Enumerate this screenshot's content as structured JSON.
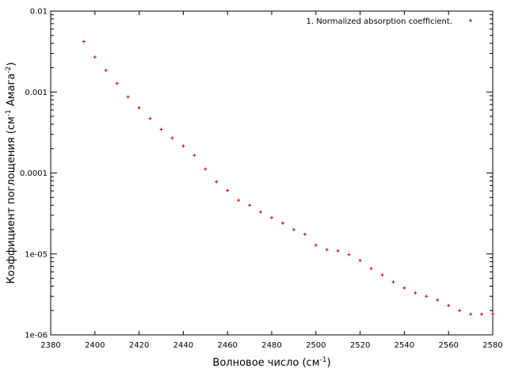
{
  "chart_data": {
    "type": "scatter",
    "xlabel": "Волновое число (см",
    "xlabel_sup": "-1",
    "xlabel_end": ")",
    "ylabel_parts": [
      "Коэффициент поглощения (см",
      "-1",
      " Амага",
      "-2",
      ")"
    ],
    "xlim": [
      2380,
      2580
    ],
    "ylim": [
      1e-06,
      0.01
    ],
    "yscale": "log",
    "grid": false,
    "legend_position": "top-right",
    "x_ticks": [
      2380,
      2400,
      2420,
      2440,
      2460,
      2480,
      2500,
      2520,
      2540,
      2560,
      2580
    ],
    "y_ticks": [
      {
        "value": 1e-06,
        "label": "1e-06"
      },
      {
        "value": 1e-05,
        "label": "1e-05"
      },
      {
        "value": 0.0001,
        "label": "0.0001"
      },
      {
        "value": 0.001,
        "label": "0.001"
      },
      {
        "value": 0.01,
        "label": "0.01"
      }
    ],
    "marker_color": "#cc0000",
    "series": [
      {
        "name": "1. Normalized absorption coefficient.",
        "x": [
          2395,
          2400,
          2405,
          2410,
          2415,
          2420,
          2425,
          2430,
          2435,
          2440,
          2445,
          2450,
          2455,
          2460,
          2465,
          2470,
          2475,
          2480,
          2485,
          2490,
          2495,
          2500,
          2505,
          2510,
          2515,
          2520,
          2525,
          2530,
          2535,
          2540,
          2545,
          2550,
          2555,
          2560,
          2565,
          2570,
          2575,
          2580
        ],
        "y": [
          0.0042,
          0.0027,
          0.00185,
          0.00128,
          0.00087,
          0.00064,
          0.00047,
          0.000345,
          0.00027,
          0.000215,
          0.000165,
          0.000112,
          7.8e-05,
          6.1e-05,
          4.6e-05,
          4e-05,
          3.3e-05,
          2.8e-05,
          2.4e-05,
          2e-05,
          1.75e-05,
          1.28e-05,
          1.13e-05,
          1.09e-05,
          9.8e-06,
          8.3e-06,
          6.6e-06,
          5.5e-06,
          4.5e-06,
          3.8e-06,
          3.3e-06,
          3e-06,
          2.7e-06,
          2.3e-06,
          2e-06,
          1.8e-06,
          1.8e-06,
          1.8e-06
        ]
      }
    ]
  }
}
